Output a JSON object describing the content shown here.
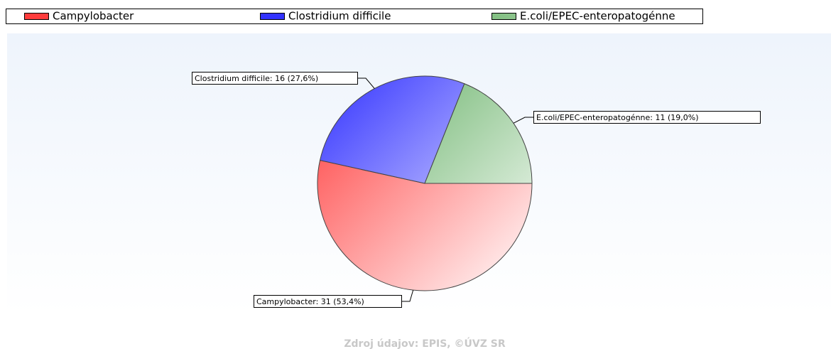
{
  "chart_data": {
    "type": "pie",
    "categories": [
      "Campylobacter",
      "Clostridium difficile",
      "E.coli/EPEC-enteropatogénne"
    ],
    "values": [
      31,
      16,
      11
    ],
    "value_labels": [
      "Campylobacter: 31 (53,4%)",
      "Clostridium difficile: 16 (27,6%)",
      "E.coli/EPEC-enteropatogénne: 11 (19,0%)"
    ],
    "colors": [
      "#ff3c3c",
      "#3232ff",
      "#55a855"
    ],
    "source": "Zdroj údajov: EPIS, ©ÚVZ SR"
  }
}
